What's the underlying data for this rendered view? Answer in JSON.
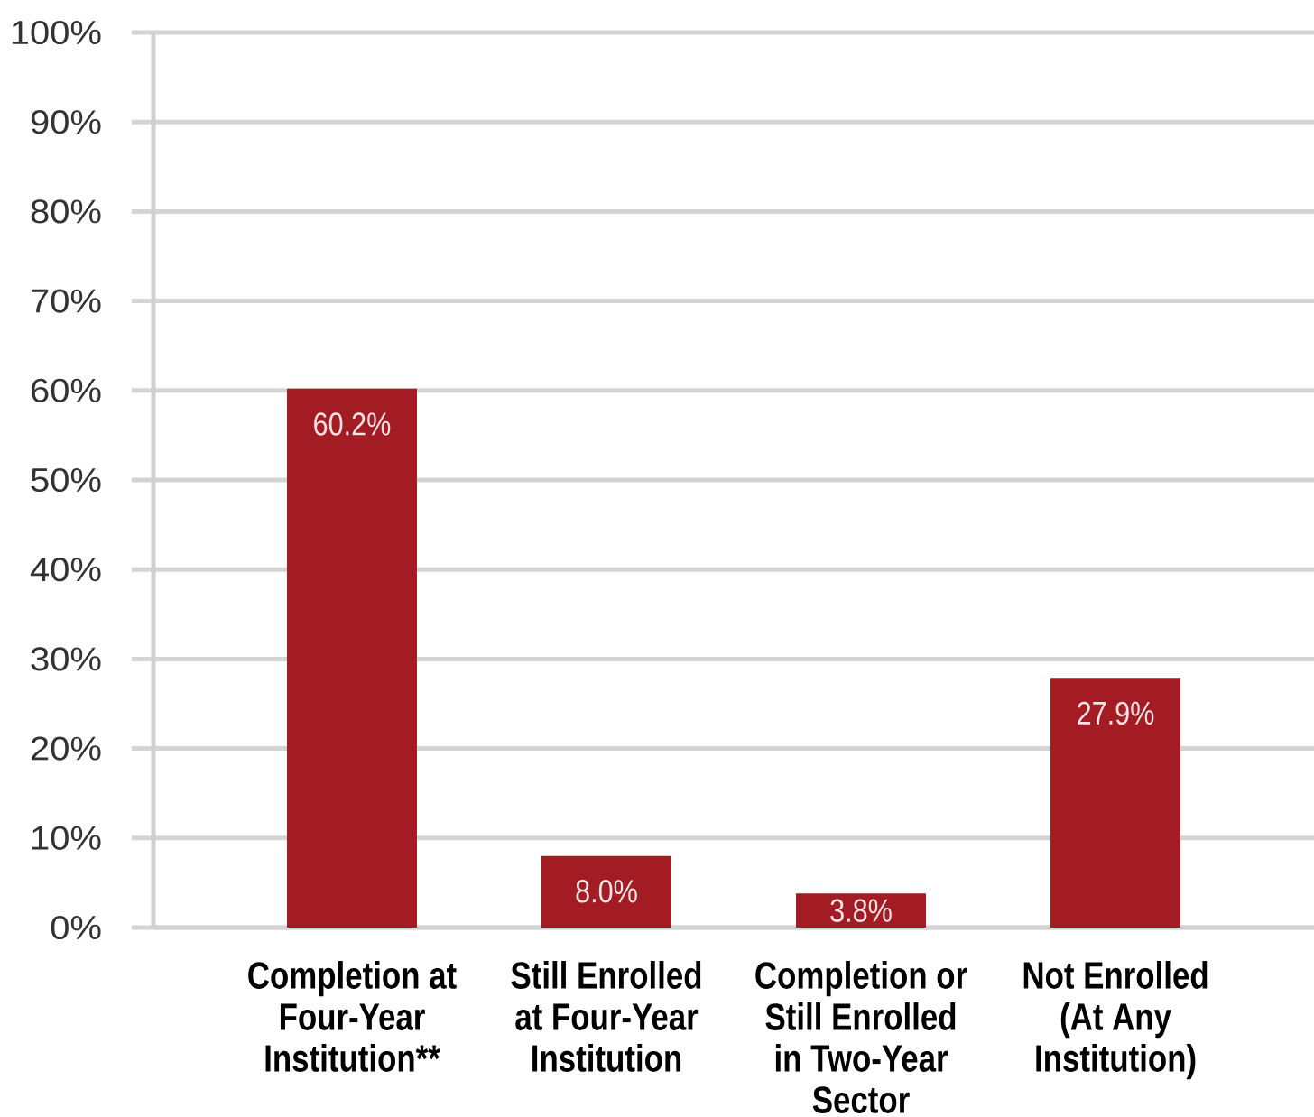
{
  "chart_data": {
    "type": "bar",
    "categories": [
      "Completion at Four-Year Institution**",
      "Still Enrolled at Four-Year Institution",
      "Completion or Still Enrolled in Two-Year Sector",
      "Not Enrolled (At Any Institution)"
    ],
    "values": [
      60.2,
      8.0,
      3.8,
      27.9
    ],
    "color": "#a31c24",
    "value_labels": [
      "60.2%",
      "8.0%",
      "3.8%",
      "27.9%"
    ],
    "ylim": [
      0,
      100
    ],
    "yticks": [
      {
        "value": 0,
        "label": "0%"
      },
      {
        "value": 10,
        "label": "10%"
      },
      {
        "value": 20,
        "label": "20%"
      },
      {
        "value": 30,
        "label": "30%"
      },
      {
        "value": 40,
        "label": "40%"
      },
      {
        "value": 50,
        "label": "50%"
      },
      {
        "value": 60,
        "label": "60%"
      },
      {
        "value": 70,
        "label": "70%"
      },
      {
        "value": 80,
        "label": "80%"
      },
      {
        "value": 90,
        "label": "90%"
      },
      {
        "value": 100,
        "label": "100%"
      }
    ],
    "grid": "y"
  }
}
